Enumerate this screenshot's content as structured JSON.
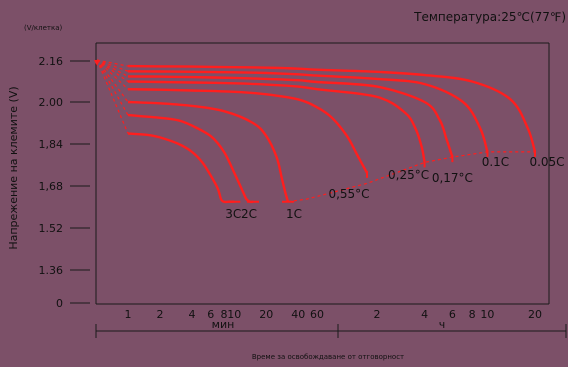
{
  "chart_data": {
    "type": "line",
    "title": "Температура:25℃(77℉)",
    "xlabel": "Време за освобождаване от отговорност",
    "ylabel": "Напрежение на клемите (V)",
    "yunit": "(V/клетка)",
    "ytick_labels": [
      "0",
      "1.36",
      "1.52",
      "1,68",
      "1,84",
      "2.00",
      "2.16"
    ],
    "x_ticks_min": [
      "1",
      "2",
      "4",
      "6",
      "8",
      "10",
      "20",
      "40",
      "60"
    ],
    "x_ticks_h": [
      "2",
      "4",
      "6",
      "8",
      "10",
      "20"
    ],
    "x_group_min": "мин",
    "x_group_h": "ч",
    "grid": false,
    "series": [
      {
        "name": "3C",
        "x_min": [
          1,
          1.5,
          2,
          3,
          4,
          5,
          6,
          7,
          7.5,
          8,
          9,
          10
        ],
        "y": [
          1.88,
          1.875,
          1.865,
          1.84,
          1.81,
          1.77,
          1.72,
          1.67,
          1.63,
          1.62,
          1.62,
          1.62
        ]
      },
      {
        "name": "2C",
        "x_min": [
          1,
          2,
          3,
          4,
          6,
          8,
          10,
          12,
          13,
          14,
          15
        ],
        "y": [
          1.95,
          1.94,
          1.93,
          1.91,
          1.87,
          1.81,
          1.73,
          1.66,
          1.63,
          1.62,
          1.62
        ]
      },
      {
        "name": "1C",
        "x_min": [
          1,
          2,
          4,
          8,
          15,
          20,
          25,
          28,
          30,
          32
        ],
        "y": [
          2.0,
          1.995,
          1.985,
          1.965,
          1.92,
          1.87,
          1.79,
          1.71,
          1.66,
          1.62
        ]
      },
      {
        "name": "0,55°C",
        "x_min": [
          1,
          2,
          4,
          10,
          20,
          40,
          60,
          75,
          90,
          100,
          110
        ],
        "y": [
          2.05,
          2.048,
          2.045,
          2.04,
          2.03,
          2.01,
          1.98,
          1.94,
          1.87,
          1.8,
          1.73
        ]
      },
      {
        "name": "0,25°C",
        "x_min": [
          1,
          2,
          4,
          10,
          20,
          40,
          60,
          120,
          180,
          210,
          230,
          240
        ],
        "y": [
          2.08,
          2.078,
          2.076,
          2.073,
          2.068,
          2.06,
          2.05,
          2.02,
          1.96,
          1.9,
          1.83,
          1.77
        ]
      },
      {
        "name": "0,17°C",
        "x_min": [
          1,
          2,
          4,
          10,
          20,
          40,
          60,
          120,
          240,
          300,
          330,
          360
        ],
        "y": [
          2.1,
          2.099,
          2.097,
          2.094,
          2.09,
          2.085,
          2.078,
          2.06,
          2.0,
          1.93,
          1.86,
          1.79
        ]
      },
      {
        "name": "0.1C",
        "x_min": [
          1,
          2,
          4,
          10,
          20,
          40,
          60,
          120,
          240,
          420,
          540,
          600
        ],
        "y": [
          2.12,
          2.119,
          2.118,
          2.116,
          2.113,
          2.108,
          2.103,
          2.09,
          2.07,
          2.0,
          1.9,
          1.81
        ]
      },
      {
        "name": "0.05C",
        "x_min": [
          1,
          2,
          4,
          10,
          20,
          40,
          60,
          120,
          240,
          480,
          840,
          1080,
          1200
        ],
        "y": [
          2.14,
          2.139,
          2.138,
          2.136,
          2.134,
          2.13,
          2.126,
          2.118,
          2.105,
          2.08,
          2.01,
          1.9,
          1.81
        ]
      }
    ],
    "colors": {
      "background": "#7c5068",
      "curve": "#ff1e1e",
      "text": "#111111",
      "axis": "#1a1a1a"
    }
  }
}
